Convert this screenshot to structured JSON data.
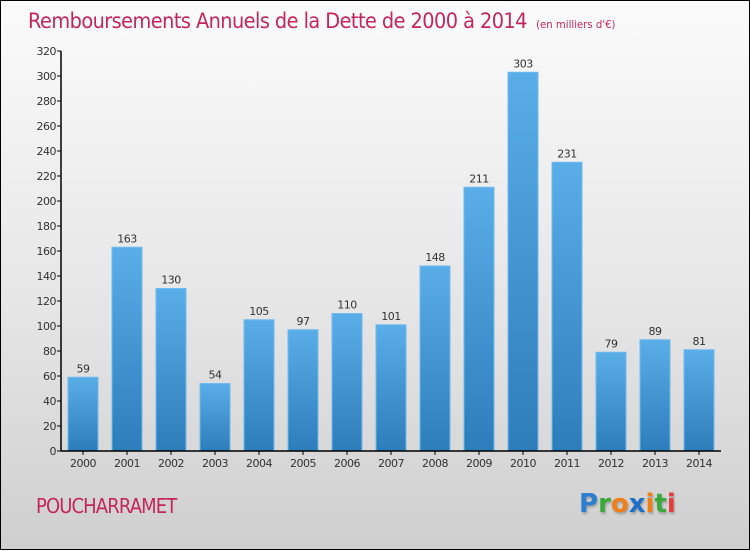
{
  "title": "Remboursements Annuels de la Dette de 2000 à 2014",
  "unit_note": "(en milliers d'€)",
  "commune": "POUCHARRAMET",
  "logo": {
    "letters": [
      {
        "ch": "P",
        "color": "#2a7fd0"
      },
      {
        "ch": "r",
        "color": "#3aa83a"
      },
      {
        "ch": "o",
        "color": "#f07f1a"
      },
      {
        "ch": "x",
        "color": "#1d6fc8"
      },
      {
        "ch": "i",
        "color": "#f07f1a"
      },
      {
        "ch": "t",
        "color": "#3aa83a"
      },
      {
        "ch": "i",
        "color": "#e83a3a"
      }
    ]
  },
  "colors": {
    "title": "#c4265b",
    "bar_top": "#5aaee8",
    "bar_bottom": "#2d7dba"
  },
  "chart_data": {
    "type": "bar",
    "title": "Remboursements Annuels de la Dette de 2000 à 2014",
    "subtitle": "(en milliers d'€)",
    "xlabel": "",
    "ylabel": "",
    "categories": [
      "2000",
      "2001",
      "2002",
      "2003",
      "2004",
      "2005",
      "2006",
      "2007",
      "2008",
      "2009",
      "2010",
      "2011",
      "2012",
      "2013",
      "2014"
    ],
    "values": [
      59,
      163,
      130,
      54,
      105,
      97,
      110,
      101,
      148,
      211,
      303,
      231,
      79,
      89,
      81
    ],
    "ylim": [
      0,
      320
    ],
    "yticks": [
      0,
      20,
      40,
      60,
      80,
      100,
      120,
      140,
      160,
      180,
      200,
      220,
      240,
      260,
      280,
      300,
      320
    ],
    "grid": false,
    "legend": "none",
    "data_labels": true
  }
}
